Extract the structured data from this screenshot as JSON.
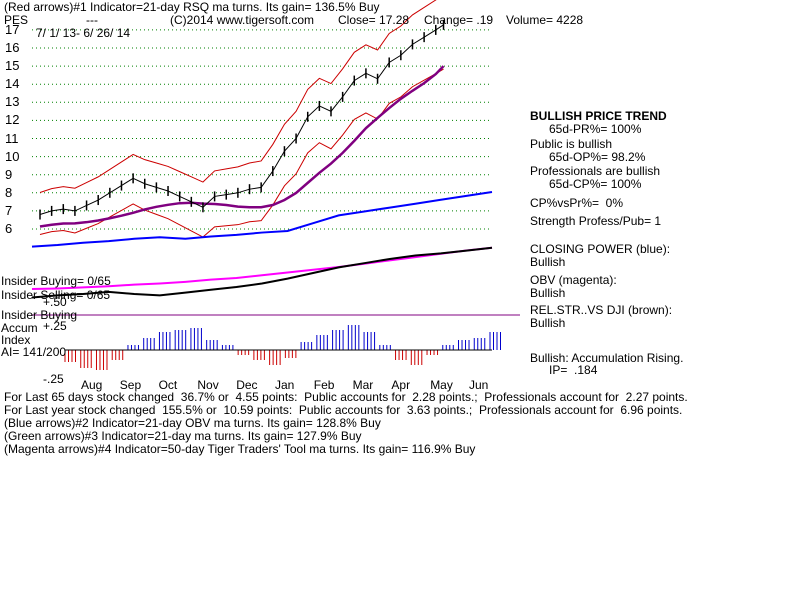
{
  "header": {
    "line1": "(Red arrows)#1 Indicator=21-day RSQ ma turns. Its gain= 136.5% Buy",
    "symbol": "PES",
    "dashes": "---",
    "copyright": "(C)2014 www.tigersoft.com",
    "close": "Close= 17.28",
    "change": "Change= .19",
    "volume": "Volume= 4228",
    "date_range": "7/ 1/ 13- 6/ 26/ 14"
  },
  "left_labels": {
    "insider_buying": "Insider Buying= 0/65",
    "insider_selling": "Insider Selling= 0/65",
    "insider_buying2": "Insider Buying",
    "accum": "Accum",
    "index": "Index",
    "ai": "AI= 141/200",
    "acc_plus50": "+.50",
    "acc_plus25": "+.25",
    "acc_minus25": "-.25"
  },
  "right_panel": {
    "trend_title": "BULLISH PRICE TREND",
    "pr": "65d-PR%= 100%",
    "public": "Public is bullish",
    "op": "65d-OP%= 98.2%",
    "pros": "Professionals are bullish",
    "cp": "65d-CP%= 100%",
    "cpvspr": "CP%vsPr%=  0%",
    "strength": "Strength Profess/Pub= 1",
    "closing_power": "CLOSING POWER (blue):",
    "cp_state": "Bullish",
    "obv": "OBV (magenta):",
    "obv_state": "Bullish",
    "relstr": "REL.STR..VS DJI (brown):",
    "relstr_state": "Bullish",
    "accum": "Bullish: Accumulation Rising.",
    "ip": "IP=  .184"
  },
  "footer": {
    "line1": "For Last 65 days stock changed  36.7% or  4.55 points:  Public accounts for  2.28 points.;  Professionals account for  2.27 points.",
    "line2": "For Last year stock changed  155.5% or  10.59 points:  Public accounts for  3.63 points.;  Professionals account for  6.96 points.",
    "line3": "(Blue arrows)#2 Indicator=21-day OBV ma turns. Its gain= 128.8% Buy",
    "line4": "(Green arrows)#3 Indicator=21-day ma turns. Its gain= 127.9% Buy",
    "line5": "(Magenta arrows)#4 Indicator=50-day Tiger Traders' Tool ma turns. Its gain= 116.9% Buy"
  },
  "colors": {
    "price": "#000000",
    "bands": "#cc0000",
    "ma": "#800080",
    "closing_power": "#0000ff",
    "obv": "#ff00ff",
    "relstr": "#000000",
    "grid": "#008000",
    "accum_pos": "#0000cc",
    "accum_neg": "#cc0000",
    "arrow_red": "#ff0000",
    "arrow_blue": "#0000ff"
  },
  "chart_data": {
    "type": "line",
    "x_tick_labels": [
      "Aug",
      "Sep",
      "Oct",
      "Nov",
      "Dec",
      "Jan",
      "Feb",
      "Mar",
      "Apr",
      "May",
      "Jun"
    ],
    "y_tick_labels": [
      6,
      7,
      8,
      9,
      10,
      11,
      12,
      13,
      14,
      15,
      16,
      17
    ],
    "ylim": [
      5.5,
      17.5
    ],
    "grid": "horizontal dotted",
    "price_series": [
      [
        0,
        6.8
      ],
      [
        0.3,
        7.0
      ],
      [
        0.6,
        7.1
      ],
      [
        0.9,
        7.0
      ],
      [
        1.2,
        7.3
      ],
      [
        1.5,
        7.6
      ],
      [
        1.8,
        8.0
      ],
      [
        2.1,
        8.4
      ],
      [
        2.4,
        8.8
      ],
      [
        2.7,
        8.5
      ],
      [
        3.0,
        8.3
      ],
      [
        3.3,
        8.1
      ],
      [
        3.6,
        7.8
      ],
      [
        3.9,
        7.5
      ],
      [
        4.2,
        7.2
      ],
      [
        4.5,
        7.8
      ],
      [
        4.8,
        7.9
      ],
      [
        5.1,
        8.0
      ],
      [
        5.4,
        8.2
      ],
      [
        5.7,
        8.3
      ],
      [
        6.0,
        9.2
      ],
      [
        6.3,
        10.3
      ],
      [
        6.6,
        11.0
      ],
      [
        6.9,
        12.2
      ],
      [
        7.2,
        12.8
      ],
      [
        7.5,
        12.5
      ],
      [
        7.8,
        13.3
      ],
      [
        8.1,
        14.2
      ],
      [
        8.4,
        14.6
      ],
      [
        8.7,
        14.3
      ],
      [
        9.0,
        15.2
      ],
      [
        9.3,
        15.6
      ],
      [
        9.6,
        16.2
      ],
      [
        9.9,
        16.6
      ],
      [
        10.2,
        17.0
      ],
      [
        10.4,
        17.28
      ]
    ],
    "series": [
      {
        "name": "CLOSING POWER",
        "values": [
          0.3,
          0.32,
          0.35,
          0.37,
          0.4,
          0.42,
          0.4,
          0.43,
          0.45,
          0.48,
          0.5,
          0.6,
          0.7,
          0.75,
          0.8,
          0.85,
          0.9,
          0.95,
          1.0
        ]
      },
      {
        "name": "OBV",
        "values": [
          0.2,
          0.21,
          0.23,
          0.25,
          0.28,
          0.3,
          0.33,
          0.37,
          0.4,
          0.45,
          0.5,
          0.55,
          0.6,
          0.66,
          0.72,
          0.78,
          0.84,
          0.9,
          0.95
        ]
      },
      {
        "name": "REL.STR..VS DJI",
        "values": [
          0.25,
          0.28,
          0.3,
          0.33,
          0.3,
          0.28,
          0.32,
          0.36,
          0.4,
          0.45,
          0.52,
          0.6,
          0.68,
          0.74,
          0.8,
          0.85,
          0.88,
          0.92,
          0.96
        ]
      }
    ],
    "accumulation_index": [
      -0.12,
      -0.18,
      -0.2,
      -0.1,
      0.05,
      0.12,
      0.18,
      0.2,
      0.22,
      0.1,
      0.05,
      -0.05,
      -0.1,
      -0.15,
      -0.08,
      0.08,
      0.15,
      0.2,
      0.25,
      0.18,
      0.05,
      -0.1,
      -0.15,
      -0.05,
      0.05,
      0.1,
      0.12,
      0.18
    ]
  }
}
